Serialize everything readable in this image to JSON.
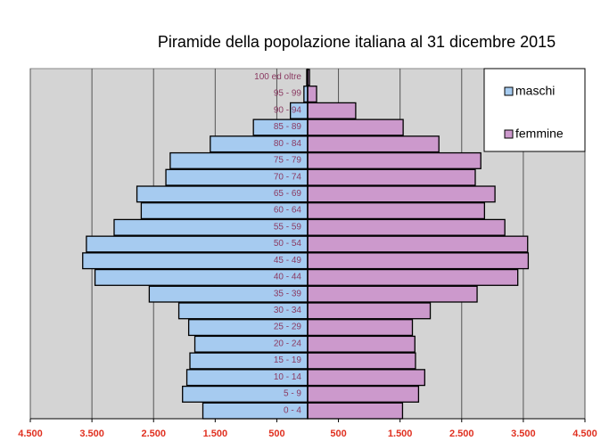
{
  "chart_data": {
    "type": "bar",
    "title": "Piramide della popolazione italiana al 31 dicembre 2015",
    "categories": [
      "0 - 4",
      "5 - 9",
      "10 - 14",
      "15 - 19",
      "20 - 24",
      "25 - 29",
      "30 - 34",
      "35 - 39",
      "40 - 44",
      "45 - 49",
      "50 - 54",
      "55 - 59",
      "60 - 64",
      "65 - 69",
      "70 - 74",
      "75 - 79",
      "80 - 84",
      "85 - 89",
      "90 - 94",
      "95 - 99",
      "100 ed oltre"
    ],
    "series": [
      {
        "name": "maschi",
        "color": "#a6cbf0",
        "side": "left",
        "values": [
          1700,
          2030,
          1960,
          1910,
          1830,
          1930,
          2090,
          2570,
          3450,
          3650,
          3590,
          3140,
          2700,
          2770,
          2300,
          2230,
          1580,
          880,
          280,
          60,
          15
        ]
      },
      {
        "name": "femmine",
        "color": "#cc99cc",
        "side": "right",
        "values": [
          1540,
          1800,
          1900,
          1750,
          1740,
          1700,
          1990,
          2750,
          3410,
          3580,
          3570,
          3200,
          2870,
          3040,
          2720,
          2810,
          2130,
          1550,
          780,
          145,
          30
        ]
      }
    ],
    "xlim": [
      -4500,
      4500
    ],
    "xticks": [
      {
        "value": -4500,
        "label": "4.500"
      },
      {
        "value": -3500,
        "label": "3.500"
      },
      {
        "value": -2500,
        "label": "2.500"
      },
      {
        "value": -1500,
        "label": "1.500"
      },
      {
        "value": -500,
        "label": "500"
      },
      500,
      {
        "value": 1500,
        "label": "1.500"
      },
      {
        "value": 2500,
        "label": "2.500"
      },
      {
        "value": 3500,
        "label": "3.500"
      },
      {
        "value": 4500,
        "label": "4.500"
      }
    ],
    "grid": true,
    "legend": "upper right"
  }
}
